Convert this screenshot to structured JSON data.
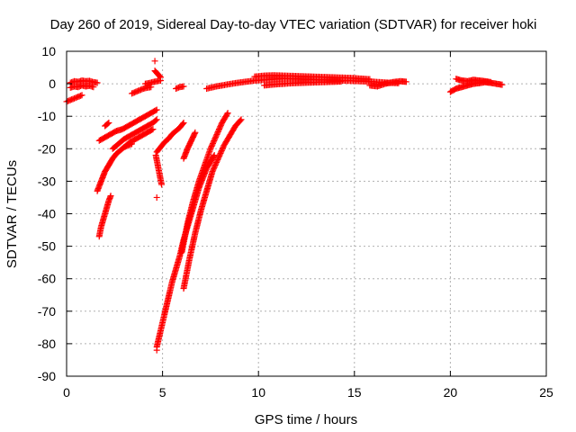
{
  "chart_data": {
    "type": "scatter",
    "title": "Day 260 of 2019, Sidereal Day-to-day VTEC variation (SDTVAR) for receiver hoki",
    "xlabel": "GPS time / hours",
    "ylabel": "SDTVAR / TECUs",
    "xlim": [
      0,
      25
    ],
    "ylim": [
      -90,
      10
    ],
    "xticks": [
      "0",
      "5",
      "10",
      "15",
      "20",
      "25"
    ],
    "yticks": [
      "10",
      "0",
      "-10",
      "-20",
      "-30",
      "-40",
      "-50",
      "-60",
      "-70",
      "-80",
      "-90"
    ],
    "grid": true,
    "marker": "+",
    "color": "#ff0000",
    "series": [
      {
        "segments": [
          {
            "x": [
              0.0,
              0.2,
              0.4,
              0.6,
              0.8
            ],
            "y": [
              -5.5,
              -5,
              -4.5,
              -4,
              -3.5
            ]
          },
          {
            "x": [
              0.2,
              0.4,
              0.6,
              0.8,
              1.0,
              1.2,
              1.4,
              1.6
            ],
            "y": [
              0.3,
              0.8,
              0.6,
              1.0,
              0.8,
              0.9,
              0.5,
              0.3
            ]
          },
          {
            "x": [
              0.2,
              0.4,
              0.6,
              0.8,
              1.0,
              1.2,
              1.4
            ],
            "y": [
              -1.2,
              -0.8,
              -1,
              -0.5,
              -0.8,
              -0.6,
              -1.0
            ]
          },
          {
            "x": [
              1.7,
              2.0,
              2.3,
              2.6,
              2.9,
              3.2,
              3.5,
              3.8,
              4.1,
              4.4,
              4.7
            ],
            "y": [
              -17.5,
              -16.5,
              -15.5,
              -14.5,
              -14,
              -13,
              -12,
              -11,
              -10,
              -9,
              -8
            ]
          },
          {
            "x": [
              2.0,
              2.2
            ],
            "y": [
              -13,
              -12
            ]
          },
          {
            "x": [
              1.6,
              1.8,
              2.0,
              2.2,
              2.4,
              2.6,
              2.8,
              3.0,
              3.2,
              3.4
            ],
            "y": [
              -33,
              -30,
              -27,
              -25,
              -23,
              -21.5,
              -20.5,
              -19.5,
              -19,
              -18.5
            ]
          },
          {
            "x": [
              2.4,
              2.7,
              3.0,
              3.3,
              3.6,
              3.9,
              4.2,
              4.5,
              4.7
            ],
            "y": [
              -20,
              -18.5,
              -17,
              -16,
              -15,
              -14,
              -13,
              -12,
              -11
            ]
          },
          {
            "x": [
              3.0,
              3.3,
              3.6,
              3.9,
              4.2,
              4.5
            ],
            "y": [
              -19.5,
              -18,
              -17,
              -16,
              -15,
              -14
            ]
          },
          {
            "x": [
              1.7,
              1.8,
              1.9,
              2.0,
              2.1,
              2.2,
              2.3
            ],
            "y": [
              -47,
              -44,
              -42,
              -40,
              -38,
              -36,
              -34.5
            ]
          },
          {
            "x": [
              3.4,
              3.6,
              3.8,
              4.0,
              4.2,
              4.4
            ],
            "y": [
              -3,
              -2.5,
              -2,
              -1.5,
              -1.2,
              -1
            ]
          },
          {
            "x": [
              4.1,
              4.3,
              4.5,
              4.7,
              4.9
            ],
            "y": [
              0,
              0.2,
              0.5,
              0.8,
              1.0
            ]
          },
          {
            "x": [
              4.6
            ],
            "y": [
              7
            ]
          },
          {
            "x": [
              4.6,
              4.75,
              4.9
            ],
            "y": [
              4,
              3,
              2
            ]
          },
          {
            "x": [
              4.65,
              4.75,
              4.85,
              4.95
            ],
            "y": [
              -22,
              -25,
              -28,
              -31
            ]
          },
          {
            "x": [
              4.7,
              4.9,
              5.1,
              5.3,
              5.5,
              5.7,
              5.9,
              6.1
            ],
            "y": [
              -21,
              -19.5,
              -18,
              -17,
              -15.5,
              -14.5,
              -13.5,
              -12
            ]
          },
          {
            "x": [
              4.7
            ],
            "y": [
              -35
            ]
          },
          {
            "x": [
              4.7,
              4.9,
              5.1,
              5.3,
              5.5,
              5.7,
              5.9,
              6.1,
              6.3,
              6.5,
              6.7,
              6.9,
              7.1,
              7.3,
              7.5,
              7.7
            ],
            "y": [
              -81,
              -76,
              -71,
              -66,
              -61,
              -57,
              -53,
              -48,
              -44,
              -40,
              -36,
              -32,
              -29,
              -26,
              -24,
              -22
            ]
          },
          {
            "x": [
              4.7
            ],
            "y": [
              -82
            ]
          },
          {
            "x": [
              6.0,
              6.3,
              6.6,
              6.9,
              7.2,
              7.5,
              7.8,
              8.1,
              8.4
            ],
            "y": [
              -52,
              -43,
              -36,
              -30,
              -25,
              -20,
              -16,
              -12,
              -9
            ]
          },
          {
            "x": [
              6.1,
              6.4,
              6.7,
              7.0,
              7.3,
              7.6,
              7.9,
              8.2,
              8.5,
              8.8,
              9.1
            ],
            "y": [
              -63,
              -54,
              -46,
              -39,
              -33,
              -27,
              -23,
              -19,
              -16,
              -13,
              -11
            ]
          },
          {
            "x": [
              6.1,
              6.3,
              6.5,
              6.7
            ],
            "y": [
              -23,
              -20,
              -17.5,
              -15
            ]
          },
          {
            "x": [
              5.7,
              5.9,
              6.1
            ],
            "y": [
              -1.5,
              -1.0,
              -0.8
            ]
          },
          {
            "x": [
              7.3,
              7.8,
              8.3,
              8.8,
              9.3,
              9.8,
              10.3,
              10.8,
              11.3,
              11.8,
              12.3,
              12.8,
              13.3,
              13.8,
              14.3,
              14.8,
              15.3,
              15.8,
              16.3,
              16.8,
              17.3
            ],
            "y": [
              -1.5,
              -0.8,
              -0.3,
              0.2,
              0.6,
              1.0,
              1.2,
              1.4,
              1.6,
              1.5,
              1.4,
              1.3,
              1.2,
              1.1,
              1.0,
              0.9,
              0.8,
              0.7,
              0.5,
              0.3,
              0.2
            ]
          },
          {
            "x": [
              9.8,
              10.3,
              10.8,
              11.3,
              11.8,
              12.3,
              12.8,
              13.3,
              13.8,
              14.3,
              14.8,
              15.3,
              15.8
            ],
            "y": [
              2.2,
              2.5,
              2.6,
              2.5,
              2.4,
              2.3,
              2.2,
              2.1,
              2.0,
              1.9,
              1.8,
              1.6,
              1.4
            ]
          },
          {
            "x": [
              10.3,
              10.8,
              11.3,
              11.8,
              12.3,
              12.8,
              13.3,
              13.8,
              14.3
            ],
            "y": [
              -0.5,
              -0.2,
              0.0,
              0.2,
              0.3,
              0.4,
              0.5,
              0.6,
              0.7
            ]
          },
          {
            "x": [
              15.8,
              16.2,
              16.6,
              17.0,
              17.4,
              17.7
            ],
            "y": [
              -0.5,
              -0.8,
              0.0,
              0.5,
              0.8,
              0.6
            ]
          },
          {
            "x": [
              20.0,
              20.3,
              20.6,
              20.9,
              21.2,
              21.5,
              21.8,
              22.1,
              22.4,
              22.7
            ],
            "y": [
              -2.5,
              -1.5,
              -1.0,
              -0.5,
              0.0,
              0.2,
              0.5,
              0.3,
              0.0,
              -0.3
            ]
          },
          {
            "x": [
              20.3,
              20.6,
              20.9,
              21.2,
              21.5,
              21.8,
              22.1
            ],
            "y": [
              1.5,
              1.0,
              0.8,
              1.2,
              1.0,
              0.8,
              0.5
            ]
          }
        ]
      }
    ]
  }
}
